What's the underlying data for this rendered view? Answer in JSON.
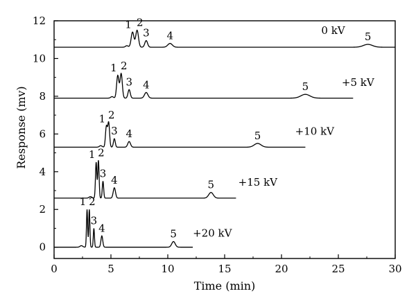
{
  "chart_data": {
    "type": "line",
    "xlabel": "Time (min)",
    "ylabel": "Response (mv)",
    "xlim": [
      0,
      30
    ],
    "ylim": [
      -0.6,
      12
    ],
    "xticks": [
      0,
      5,
      10,
      15,
      20,
      25,
      30
    ],
    "yticks": [
      0,
      2,
      4,
      6,
      8,
      10,
      12
    ],
    "grid": false,
    "series": [
      {
        "name": "0 kV",
        "baseline": 10.6,
        "end_x": 30,
        "label_xy": [
          23.5,
          11.3
        ],
        "peaks": [
          {
            "label": "1",
            "t": 6.9,
            "height": 0.8,
            "width": 0.12
          },
          {
            "label": "2",
            "t": 7.3,
            "height": 0.9,
            "width": 0.12
          },
          {
            "label": "3",
            "t": 8.1,
            "height": 0.35,
            "width": 0.12
          },
          {
            "label": "4",
            "t": 10.2,
            "height": 0.2,
            "width": 0.2
          },
          {
            "label": "5",
            "t": 27.6,
            "height": 0.15,
            "width": 0.4
          }
        ]
      },
      {
        "name": "+5 kV",
        "baseline": 7.9,
        "end_x": 26.3,
        "label_xy": [
          25.3,
          8.55
        ],
        "peaks": [
          {
            "label": "1",
            "t": 5.6,
            "height": 1.2,
            "width": 0.1
          },
          {
            "label": "2",
            "t": 5.9,
            "height": 1.3,
            "width": 0.1
          },
          {
            "label": "3",
            "t": 6.6,
            "height": 0.45,
            "width": 0.1
          },
          {
            "label": "4",
            "t": 8.1,
            "height": 0.3,
            "width": 0.15
          },
          {
            "label": "5",
            "t": 22.1,
            "height": 0.2,
            "width": 0.4
          }
        ]
      },
      {
        "name": "+10 kV",
        "baseline": 5.3,
        "end_x": 22.1,
        "label_xy": [
          21.2,
          5.95
        ],
        "peaks": [
          {
            "label": "1",
            "t": 4.6,
            "height": 1.1,
            "width": 0.08
          },
          {
            "label": "2",
            "t": 4.8,
            "height": 1.3,
            "width": 0.08
          },
          {
            "label": "3",
            "t": 5.3,
            "height": 0.45,
            "width": 0.08
          },
          {
            "label": "4",
            "t": 6.6,
            "height": 0.3,
            "width": 0.12
          },
          {
            "label": "5",
            "t": 17.9,
            "height": 0.2,
            "width": 0.3
          }
        ]
      },
      {
        "name": "+15 kV",
        "baseline": 2.6,
        "end_x": 16,
        "label_xy": [
          16.2,
          3.25
        ],
        "peaks": [
          {
            "label": "1",
            "t": 3.7,
            "height": 1.9,
            "width": 0.06
          },
          {
            "label": "2",
            "t": 3.9,
            "height": 2.0,
            "width": 0.06
          },
          {
            "label": "3",
            "t": 4.3,
            "height": 0.9,
            "width": 0.06
          },
          {
            "label": "4",
            "t": 5.3,
            "height": 0.55,
            "width": 0.1
          },
          {
            "label": "5",
            "t": 13.8,
            "height": 0.3,
            "width": 0.2
          }
        ]
      },
      {
        "name": "+20 kV",
        "baseline": 0.0,
        "end_x": 12.2,
        "label_xy": [
          12.2,
          0.55
        ],
        "peaks": [
          {
            "label": "1",
            "t": 2.9,
            "height": 2.0,
            "width": 0.05
          },
          {
            "label": "2",
            "t": 3.1,
            "height": 2.0,
            "width": 0.05
          },
          {
            "label": "3",
            "t": 3.5,
            "height": 1.0,
            "width": 0.05
          },
          {
            "label": "4",
            "t": 4.2,
            "height": 0.6,
            "width": 0.08
          },
          {
            "label": "5",
            "t": 10.5,
            "height": 0.3,
            "width": 0.15
          }
        ]
      }
    ]
  }
}
